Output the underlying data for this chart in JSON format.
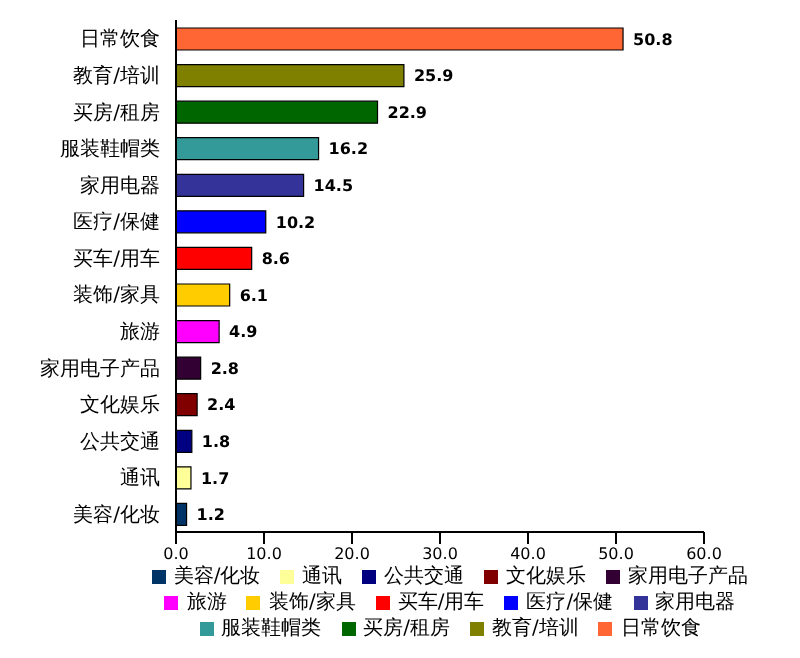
{
  "chart_data": {
    "type": "bar",
    "orientation": "horizontal",
    "stacked": true,
    "categories": [
      "日常饮食",
      "教育/培训",
      "买房/租房",
      "服装鞋帽类",
      "家用电器",
      "医疗/保健",
      "买车/用车",
      "装饰/家具",
      "旅游",
      "家用电子产品",
      "文化娱乐",
      "公共交通",
      "通讯",
      "美容/化妆"
    ],
    "series": [
      {
        "name": "美容/化妆",
        "color": "#003366",
        "values": [
          null,
          null,
          null,
          null,
          null,
          null,
          null,
          null,
          null,
          null,
          null,
          null,
          null,
          1.2
        ]
      },
      {
        "name": "通讯",
        "color": "#ffff99",
        "values": [
          null,
          null,
          null,
          null,
          null,
          null,
          null,
          null,
          null,
          null,
          null,
          null,
          1.7,
          null
        ]
      },
      {
        "name": "公共交通",
        "color": "#000080",
        "values": [
          null,
          null,
          null,
          null,
          null,
          null,
          null,
          null,
          null,
          null,
          null,
          1.8,
          null,
          null
        ]
      },
      {
        "name": "文化娱乐",
        "color": "#800000",
        "values": [
          null,
          null,
          null,
          null,
          null,
          null,
          null,
          null,
          null,
          null,
          2.4,
          null,
          null,
          null
        ]
      },
      {
        "name": "家用电子产品",
        "color": "#330033",
        "values": [
          null,
          null,
          null,
          null,
          null,
          null,
          null,
          null,
          null,
          2.8,
          null,
          null,
          null,
          null
        ]
      },
      {
        "name": "旅游",
        "color": "#ff00ff",
        "values": [
          null,
          null,
          null,
          null,
          null,
          null,
          null,
          null,
          4.9,
          null,
          null,
          null,
          null,
          null
        ]
      },
      {
        "name": "装饰/家具",
        "color": "#ffcc00",
        "values": [
          null,
          null,
          null,
          null,
          null,
          null,
          null,
          6.1,
          null,
          null,
          null,
          null,
          null,
          null
        ]
      },
      {
        "name": "买车/用车",
        "color": "#ff0000",
        "values": [
          null,
          null,
          null,
          null,
          null,
          null,
          8.6,
          null,
          null,
          null,
          null,
          null,
          null,
          null
        ]
      },
      {
        "name": "医疗/保健",
        "color": "#0000ff",
        "values": [
          null,
          null,
          null,
          null,
          null,
          10.2,
          null,
          null,
          null,
          null,
          null,
          null,
          null,
          null
        ]
      },
      {
        "name": "家用电器",
        "color": "#333399",
        "values": [
          null,
          null,
          null,
          null,
          14.5,
          null,
          null,
          null,
          null,
          null,
          null,
          null,
          null,
          null
        ]
      },
      {
        "name": "服装鞋帽类",
        "color": "#339999",
        "values": [
          null,
          null,
          null,
          16.2,
          null,
          null,
          null,
          null,
          null,
          null,
          null,
          null,
          null,
          null
        ]
      },
      {
        "name": "买房/租房",
        "color": "#006600",
        "values": [
          null,
          null,
          22.9,
          null,
          null,
          null,
          null,
          null,
          null,
          null,
          null,
          null,
          null,
          null
        ]
      },
      {
        "name": "教育/培训",
        "color": "#808000",
        "values": [
          null,
          25.9,
          null,
          null,
          null,
          null,
          null,
          null,
          null,
          null,
          null,
          null,
          null,
          null
        ]
      },
      {
        "name": "日常饮食",
        "color": "#ff6633",
        "values": [
          50.8,
          null,
          null,
          null,
          null,
          null,
          null,
          null,
          null,
          null,
          null,
          null,
          null,
          null
        ]
      }
    ],
    "xlim": [
      0,
      60
    ],
    "xticks": [
      {
        "value": 0,
        "label": "0.0"
      },
      {
        "value": 10,
        "label": "10.0"
      },
      {
        "value": 20,
        "label": "20.0"
      },
      {
        "value": 30,
        "label": "30.0"
      },
      {
        "value": 40,
        "label": "40.0"
      },
      {
        "value": 50,
        "label": "50.0"
      },
      {
        "value": 60,
        "label": "60.0"
      }
    ],
    "data_labels": true,
    "legend": "bottom",
    "grid": false
  }
}
